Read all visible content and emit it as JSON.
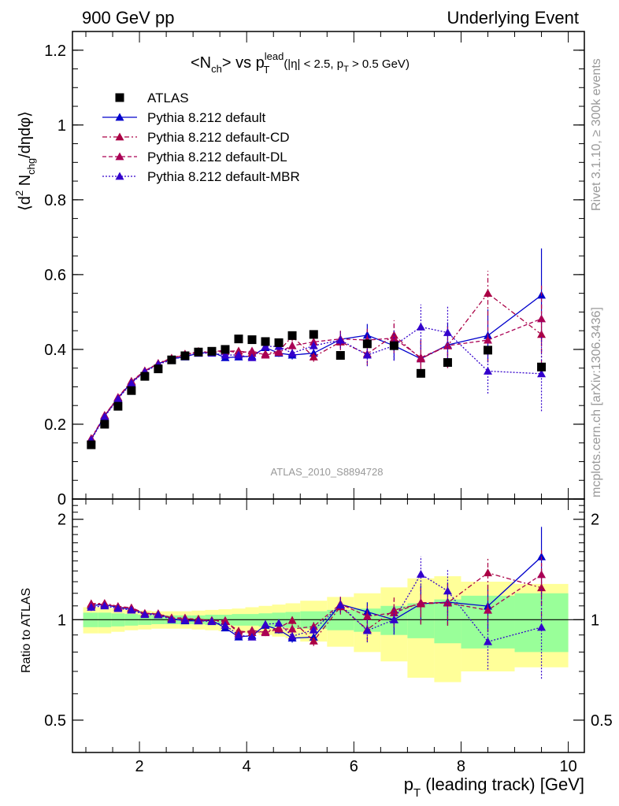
{
  "header": {
    "left": "900 GeV pp",
    "right": "Underlying Event"
  },
  "side_labels": {
    "rivet": "Rivet 3.1.10, ≥ 300k events",
    "mcplots": "mcplots.cern.ch [arXiv:1306.3436]"
  },
  "chart_data": {
    "type": "scatter",
    "title_parts": {
      "pre": "<N",
      "sub1": "ch",
      "mid": "> vs p",
      "sup2": "lead",
      "sub2": "T",
      "cut_pre": "(|η| < 2.5, p",
      "cut_sub": "T",
      "cut_post": " > 0.5 GeV)"
    },
    "ylabel_parts": {
      "pre": "⟨d",
      "sup": "2",
      "mid": " N",
      "sub": "chg",
      "post": "/dηdφ⟩"
    },
    "xlabel_parts": {
      "pre": "p",
      "sub": "T",
      "post": " (leading track) [GeV]"
    },
    "ratio_ylabel": "Ratio to ATLAS",
    "analysis_label": "ATLAS_2010_S8894728",
    "xlim": [
      0.75,
      10.3
    ],
    "ylim": [
      0,
      1.25
    ],
    "ratio_ylim": [
      0.4,
      2.3
    ],
    "x_ticks": [
      "2",
      "4",
      "6",
      "8",
      "10"
    ],
    "y_ticks": [
      "0",
      "0.2",
      "0.4",
      "0.6",
      "0.8",
      "1",
      "1.2"
    ],
    "ratio_y_ticks": [
      "0.5",
      "1",
      "2"
    ],
    "legend_position": "top-left",
    "x": [
      1.1,
      1.35,
      1.6,
      1.85,
      2.1,
      2.35,
      2.6,
      2.85,
      3.1,
      3.35,
      3.6,
      3.85,
      4.1,
      4.35,
      4.6,
      4.85,
      5.25,
      5.75,
      6.25,
      6.75,
      7.25,
      7.75,
      8.5,
      9.5
    ],
    "data": {
      "name": "ATLAS",
      "values": [
        0.145,
        0.2,
        0.248,
        0.29,
        0.328,
        0.348,
        0.372,
        0.383,
        0.393,
        0.395,
        0.4,
        0.428,
        0.426,
        0.421,
        0.418,
        0.437,
        0.44,
        0.384,
        0.415,
        0.41,
        0.336,
        0.365,
        0.398,
        0.353
      ],
      "band_inner": [
        0.05,
        0.05,
        0.045,
        0.04,
        0.035,
        0.03,
        0.03,
        0.03,
        0.03,
        0.035,
        0.035,
        0.04,
        0.04,
        0.045,
        0.05,
        0.055,
        0.06,
        0.07,
        0.08,
        0.1,
        0.12,
        0.15,
        0.18,
        0.2
      ],
      "band_outer": [
        0.09,
        0.09,
        0.08,
        0.07,
        0.065,
        0.06,
        0.06,
        0.06,
        0.065,
        0.07,
        0.075,
        0.08,
        0.09,
        0.1,
        0.11,
        0.12,
        0.14,
        0.17,
        0.2,
        0.25,
        0.33,
        0.35,
        0.3,
        0.28
      ],
      "bin_edges": [
        0.95,
        1.225,
        1.475,
        1.725,
        1.975,
        2.225,
        2.475,
        2.725,
        2.975,
        3.225,
        3.475,
        3.725,
        3.975,
        4.225,
        4.475,
        4.725,
        5.0,
        5.5,
        6.0,
        6.5,
        7.0,
        7.5,
        8.0,
        9.0,
        10.0
      ]
    },
    "series": [
      {
        "name": "Pythia 8.212 default",
        "color": "#0000cc",
        "dash": "",
        "values": [
          0.16,
          0.222,
          0.27,
          0.312,
          0.342,
          0.362,
          0.375,
          0.38,
          0.39,
          0.393,
          0.378,
          0.38,
          0.382,
          0.405,
          0.39,
          0.385,
          0.39,
          0.427,
          0.438,
          0.41,
          0.375,
          0.412,
          0.437,
          0.545
        ],
        "errors": [
          0.004,
          0.004,
          0.004,
          0.004,
          0.004,
          0.005,
          0.005,
          0.005,
          0.006,
          0.006,
          0.007,
          0.008,
          0.008,
          0.009,
          0.01,
          0.012,
          0.013,
          0.022,
          0.03,
          0.04,
          0.05,
          0.06,
          0.07,
          0.125
        ]
      },
      {
        "name": "Pythia 8.212 default-CD",
        "color": "#aa0044",
        "dash": "6,3,2,3",
        "values": [
          0.162,
          0.224,
          0.272,
          0.315,
          0.343,
          0.363,
          0.377,
          0.385,
          0.395,
          0.392,
          0.395,
          0.396,
          0.39,
          0.388,
          0.395,
          0.435,
          0.38,
          0.42,
          0.388,
          0.438,
          0.375,
          0.41,
          0.55,
          0.44
        ],
        "errors": [
          0.004,
          0.004,
          0.004,
          0.004,
          0.004,
          0.005,
          0.005,
          0.005,
          0.006,
          0.006,
          0.007,
          0.008,
          0.008,
          0.009,
          0.01,
          0.012,
          0.013,
          0.022,
          0.03,
          0.04,
          0.05,
          0.06,
          0.06,
          0.08
        ]
      },
      {
        "name": "Pythia 8.212 default-DL",
        "color": "#aa0055",
        "dash": "5,3",
        "values": [
          0.161,
          0.223,
          0.271,
          0.313,
          0.342,
          0.362,
          0.376,
          0.388,
          0.392,
          0.393,
          0.398,
          0.39,
          0.396,
          0.385,
          0.392,
          0.41,
          0.42,
          0.428,
          0.425,
          0.43,
          0.378,
          0.41,
          0.425,
          0.482
        ],
        "errors": [
          0.004,
          0.004,
          0.004,
          0.004,
          0.004,
          0.005,
          0.005,
          0.005,
          0.006,
          0.006,
          0.007,
          0.008,
          0.008,
          0.009,
          0.01,
          0.012,
          0.013,
          0.022,
          0.03,
          0.04,
          0.05,
          0.06,
          0.06,
          0.09
        ]
      },
      {
        "name": "Pythia 8.212 default-MBR",
        "color": "#3300cc",
        "dash": "2,2",
        "values": [
          0.158,
          0.22,
          0.268,
          0.31,
          0.34,
          0.36,
          0.372,
          0.382,
          0.39,
          0.39,
          0.385,
          0.385,
          0.378,
          0.408,
          0.408,
          0.39,
          0.41,
          0.425,
          0.385,
          0.41,
          0.46,
          0.445,
          0.342,
          0.335
        ],
        "errors": [
          0.004,
          0.004,
          0.004,
          0.004,
          0.004,
          0.005,
          0.005,
          0.005,
          0.006,
          0.006,
          0.007,
          0.008,
          0.008,
          0.009,
          0.01,
          0.012,
          0.013,
          0.022,
          0.03,
          0.04,
          0.06,
          0.07,
          0.06,
          0.1
        ]
      }
    ]
  }
}
